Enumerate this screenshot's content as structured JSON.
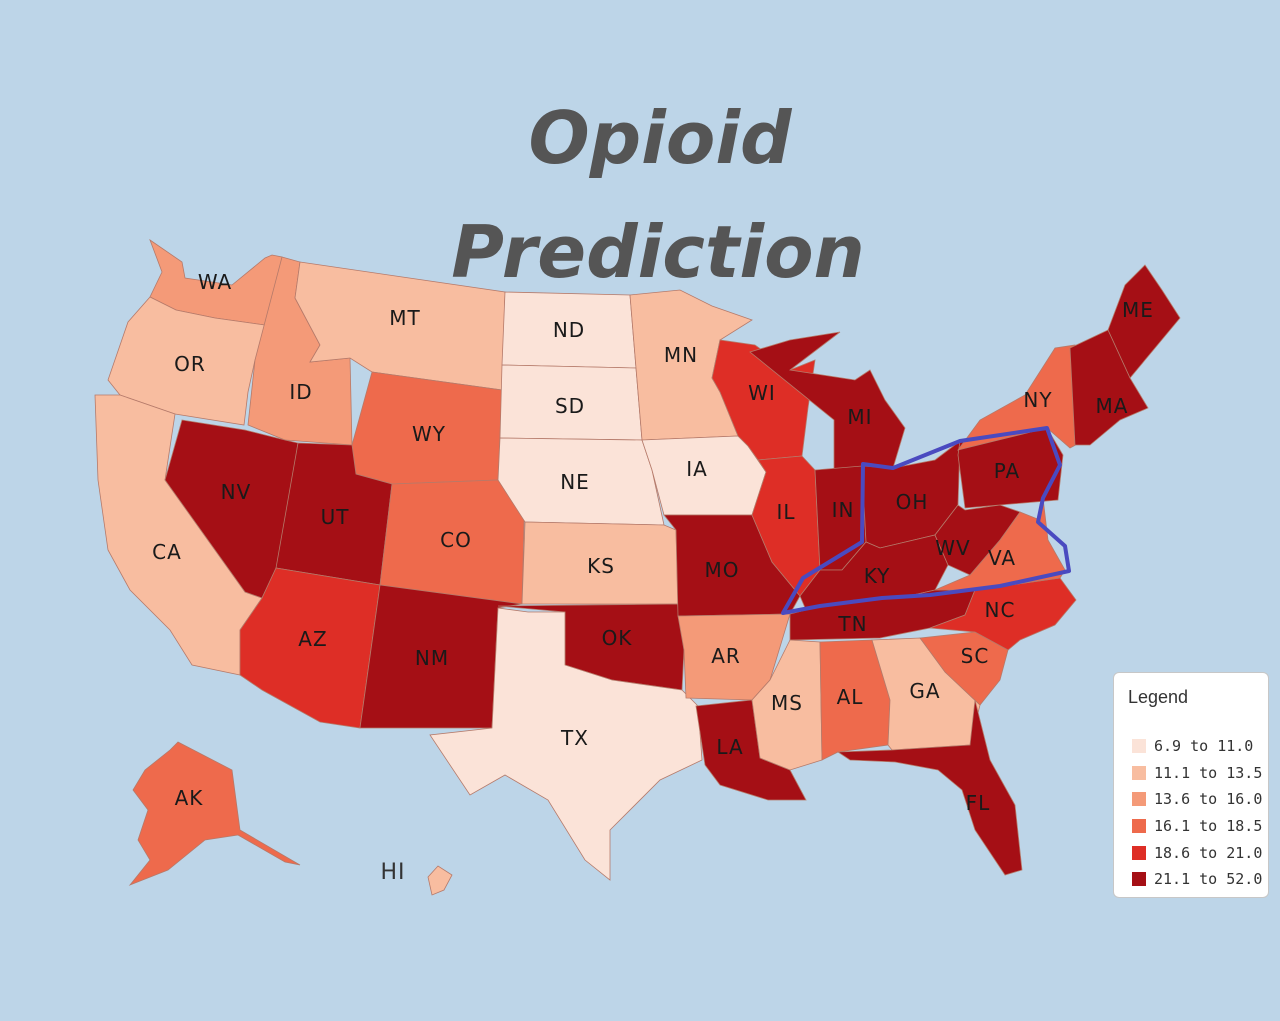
{
  "title": {
    "line1": "Opioid",
    "line2": "Prediction"
  },
  "colors": {
    "background": "#bdd5e8",
    "title": "#555555",
    "highlight_outline": "#4a4ac0",
    "bin_colors": [
      "#fbe3d8",
      "#f8bda0",
      "#f49a78",
      "#ee6a4c",
      "#de2e26",
      "#a50f15"
    ]
  },
  "legend": {
    "title": "Legend",
    "items": [
      {
        "label": "6.9 to 11.0",
        "color": "#fbe3d8"
      },
      {
        "label": "11.1 to 13.5",
        "color": "#f8bda0"
      },
      {
        "label": "13.6 to 16.0",
        "color": "#f49a78"
      },
      {
        "label": "16.1 to 18.5",
        "color": "#ee6a4c"
      },
      {
        "label": "18.6 to 21.0",
        "color": "#de2e26"
      },
      {
        "label": "21.1 to 52.0",
        "color": "#a50f15"
      }
    ]
  },
  "states": [
    {
      "abbr": "WA",
      "bin": 2
    },
    {
      "abbr": "OR",
      "bin": 1
    },
    {
      "abbr": "CA",
      "bin": 1
    },
    {
      "abbr": "ID",
      "bin": 2
    },
    {
      "abbr": "NV",
      "bin": 5
    },
    {
      "abbr": "MT",
      "bin": 1
    },
    {
      "abbr": "WY",
      "bin": 3
    },
    {
      "abbr": "UT",
      "bin": 5
    },
    {
      "abbr": "AZ",
      "bin": 4
    },
    {
      "abbr": "CO",
      "bin": 3
    },
    {
      "abbr": "NM",
      "bin": 5
    },
    {
      "abbr": "ND",
      "bin": 0
    },
    {
      "abbr": "SD",
      "bin": 0
    },
    {
      "abbr": "NE",
      "bin": 0
    },
    {
      "abbr": "KS",
      "bin": 1
    },
    {
      "abbr": "OK",
      "bin": 5
    },
    {
      "abbr": "TX",
      "bin": 0
    },
    {
      "abbr": "MN",
      "bin": 1
    },
    {
      "abbr": "IA",
      "bin": 0
    },
    {
      "abbr": "MO",
      "bin": 5
    },
    {
      "abbr": "AR",
      "bin": 2
    },
    {
      "abbr": "LA",
      "bin": 5
    },
    {
      "abbr": "WI",
      "bin": 4
    },
    {
      "abbr": "IL",
      "bin": 4
    },
    {
      "abbr": "MI",
      "bin": 5
    },
    {
      "abbr": "IN",
      "bin": 5
    },
    {
      "abbr": "OH",
      "bin": 5
    },
    {
      "abbr": "KY",
      "bin": 5
    },
    {
      "abbr": "TN",
      "bin": 5
    },
    {
      "abbr": "MS",
      "bin": 1
    },
    {
      "abbr": "AL",
      "bin": 3
    },
    {
      "abbr": "GA",
      "bin": 1
    },
    {
      "abbr": "FL",
      "bin": 5
    },
    {
      "abbr": "SC",
      "bin": 3
    },
    {
      "abbr": "NC",
      "bin": 4
    },
    {
      "abbr": "VA",
      "bin": 3
    },
    {
      "abbr": "WV",
      "bin": 5
    },
    {
      "abbr": "PA",
      "bin": 5
    },
    {
      "abbr": "NY",
      "bin": 3
    },
    {
      "abbr": "ME",
      "bin": 5
    },
    {
      "abbr": "MA",
      "bin": 5
    },
    {
      "abbr": "AK",
      "bin": 3
    },
    {
      "abbr": "HI",
      "bin": 1
    }
  ]
}
